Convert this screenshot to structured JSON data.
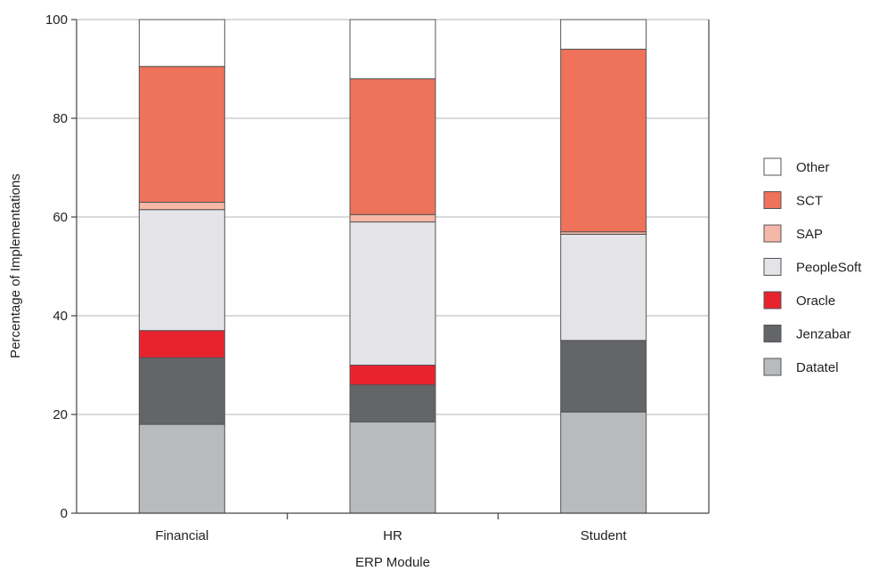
{
  "chart_data": {
    "type": "bar",
    "stacked": true,
    "title": "",
    "xlabel": "ERP Module",
    "ylabel": "Percentage of Implementations",
    "ylim": [
      0,
      100
    ],
    "yticks": [
      0,
      20,
      40,
      60,
      80,
      100
    ],
    "grid": true,
    "legend_position": "right",
    "categories": [
      "Financial",
      "HR",
      "Student"
    ],
    "series": [
      {
        "name": "Datatel",
        "color": "#b8babd",
        "values": [
          18,
          18.5,
          20.5
        ]
      },
      {
        "name": "Jenzabar",
        "color": "#636569",
        "values": [
          13.5,
          7.5,
          14.5
        ]
      },
      {
        "name": "Oracle",
        "color": "#e8232e",
        "values": [
          5.5,
          4,
          0
        ]
      },
      {
        "name": "PeopleSoft",
        "color": "#e4e4e8",
        "values": [
          24.5,
          29,
          21.5
        ]
      },
      {
        "name": "SAP",
        "color": "#f5b7a7",
        "values": [
          1.5,
          1.5,
          0.5
        ]
      },
      {
        "name": "SCT",
        "color": "#ef725a",
        "values": [
          27.5,
          27.5,
          37
        ]
      },
      {
        "name": "Other",
        "color": "#ffffff",
        "values": [
          9.5,
          12,
          6
        ]
      }
    ],
    "legend_order": [
      "Other",
      "SCT",
      "SAP",
      "PeopleSoft",
      "Oracle",
      "Jenzabar",
      "Datatel"
    ]
  }
}
